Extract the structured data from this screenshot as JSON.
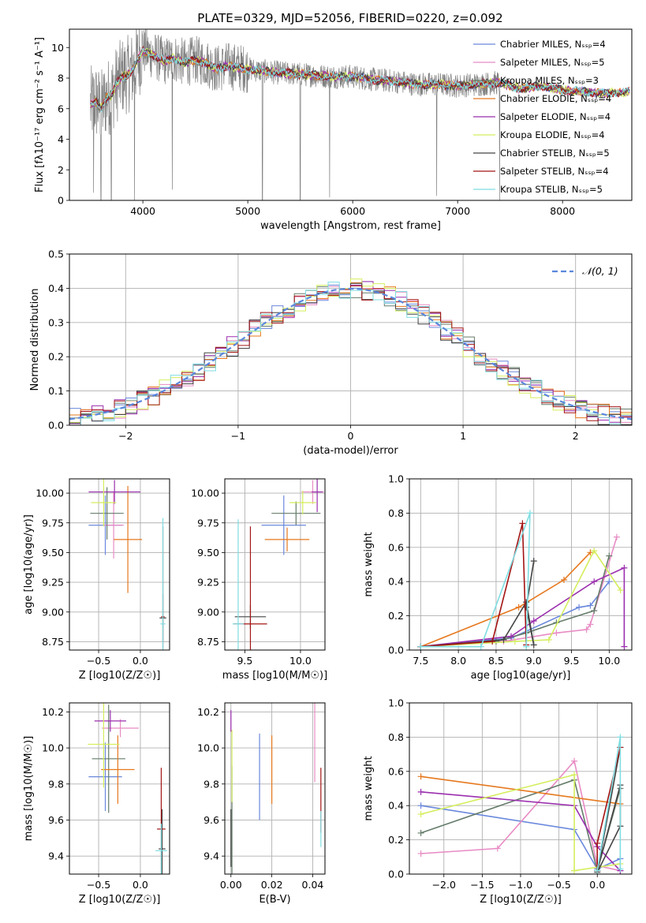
{
  "figure_title": "PLATE=0329, MJD=52056, FIBERID=0220, z=0.092",
  "colors": {
    "c0": "#6a88dc",
    "c1": "#e88bc4",
    "c2": "#657c6a",
    "c3": "#e6781e",
    "c4": "#9b2fae",
    "c5": "#d4ee5e",
    "c6": "#444444",
    "c7": "#a31414",
    "c8": "#7fdde2",
    "grid": "#b0b0b0",
    "gray": "#808080"
  },
  "chart_data": [
    {
      "id": "spectrum",
      "type": "line",
      "title": "PLATE=0329, MJD=52056, FIBERID=0220, z=0.092",
      "xlabel": "wavelength [Angstrom, rest frame]",
      "ylabel": "Flux [fλ10⁻¹⁷ erg cm⁻² s⁻¹ A⁻¹]",
      "xlim": [
        3300,
        8660
      ],
      "ylim": [
        0,
        11.2
      ],
      "xticks": [
        "4000",
        "5000",
        "6000",
        "7000",
        "8000"
      ],
      "yticks": [
        "0",
        "2",
        "4",
        "6",
        "8",
        "10"
      ],
      "grid": false,
      "legend_position": "top-right",
      "legend": [
        "Chabrier MILES, N_SSP=4",
        "Salpeter MILES, N_SSP=5",
        "Kroupa MILES, N_SSP=3",
        "Chabrier ELODIE, N_SSP=4",
        "Salpeter ELODIE, N_SSP=4",
        "Kroupa ELODIE, N_SSP=4",
        "Chabrier STELIB, N_SSP=5",
        "Salpeter STELIB, N_SSP=4",
        "Kroupa STELIB, N_SSP=5"
      ],
      "model_continuum": {
        "x": [
          3500,
          3550,
          3600,
          3650,
          3700,
          3750,
          3800,
          3850,
          3900,
          3950,
          4000,
          4100,
          4200,
          4300,
          4400,
          4500,
          4600,
          4700,
          4800,
          4900,
          5000,
          5200,
          5400,
          5600,
          5800,
          6000,
          6200,
          6400,
          6600,
          6800,
          7000,
          7200,
          7400,
          7600,
          7800,
          8000,
          8200,
          8400,
          8600
        ],
        "y": [
          6.2,
          6.5,
          6.0,
          6.7,
          6.9,
          7.6,
          8.1,
          8.2,
          8.5,
          9.2,
          9.8,
          9.5,
          9.1,
          9.3,
          9.0,
          9.2,
          9.0,
          8.6,
          8.8,
          8.7,
          8.6,
          8.4,
          8.3,
          8.2,
          8.1,
          8.1,
          7.9,
          7.8,
          7.6,
          7.6,
          7.5,
          7.6,
          7.7,
          7.3,
          7.5,
          7.2,
          7.1,
          7.0,
          7.1
        ]
      },
      "absorption_lines": [
        {
          "x": 3530,
          "depth": 0.5
        },
        {
          "x": 3600,
          "depth": 0.0
        },
        {
          "x": 3700,
          "depth": 0.0
        },
        {
          "x": 3920,
          "depth": 0.0
        },
        {
          "x": 4280,
          "depth": 0.7
        },
        {
          "x": 5140,
          "depth": 0.0
        },
        {
          "x": 5500,
          "depth": 0.0
        },
        {
          "x": 5780,
          "depth": 0.2
        },
        {
          "x": 6800,
          "depth": 0.3
        },
        {
          "x": 7400,
          "depth": 0.0
        }
      ]
    },
    {
      "id": "residual-hist",
      "type": "histogram",
      "xlabel": "(data-model)/error",
      "ylabel": "Normed distribution",
      "xlim": [
        -2.5,
        2.5
      ],
      "ylim": [
        0,
        0.5
      ],
      "xticks": [
        "−2",
        "−1",
        "0",
        "1",
        "2"
      ],
      "yticks": [
        "0.0",
        "0.1",
        "0.2",
        "0.3",
        "0.4",
        "0.5"
      ],
      "grid": true,
      "legend": [
        "𝒩(0, 1)"
      ],
      "bin_width": 0.1
    },
    {
      "id": "age-vs-z",
      "type": "errorbar",
      "xlabel": "Z [log10(Z/Z☉)]",
      "ylabel": "age  [log10(age/yr)]",
      "xlim": [
        -0.85,
        0.35
      ],
      "ylim": [
        8.68,
        10.12
      ],
      "xticks": [
        "−0.5",
        "0.0"
      ],
      "yticks": [
        "8.75",
        "9.00",
        "9.25",
        "9.50",
        "9.75",
        "10.00"
      ],
      "grid": true,
      "points": [
        {
          "x": -0.42,
          "y": 9.73,
          "xerr": 0.2,
          "yerr": 0.25,
          "c": "c0"
        },
        {
          "x": -0.32,
          "y": 9.73,
          "xerr": 0.12,
          "yerr": 0.28,
          "c": "c1"
        },
        {
          "x": -0.4,
          "y": 9.83,
          "xerr": 0.2,
          "yerr": 0.22,
          "c": "c2"
        },
        {
          "x": -0.15,
          "y": 9.61,
          "xerr": 0.17,
          "yerr": 0.45,
          "c": "c3"
        },
        {
          "x": -0.31,
          "y": 10.01,
          "xerr": 0.31,
          "yerr": 0.1,
          "c": "c4"
        },
        {
          "x": -0.44,
          "y": 9.92,
          "xerr": 0.15,
          "yerr": 0.2,
          "c": "c5"
        },
        {
          "x": 0.27,
          "y": 8.95,
          "xerr": 0.04,
          "yerr": 0.2,
          "c": "c6"
        },
        {
          "x": 0.27,
          "y": 8.96,
          "xerr": 0.02,
          "yerr": 0.76,
          "c": "c7"
        },
        {
          "x": 0.27,
          "y": 8.9,
          "xerr": 0.03,
          "yerr": 0.89,
          "c": "c8"
        }
      ]
    },
    {
      "id": "age-vs-mass",
      "type": "errorbar",
      "xlabel": "mass [log10(M/M☉)]",
      "ylabel": "",
      "xlim": [
        9.32,
        10.22
      ],
      "ylim": [
        8.68,
        10.12
      ],
      "xticks": [
        "9.5",
        "10.0"
      ],
      "yticks": [
        "8.75",
        "9.00",
        "9.25",
        "9.50",
        "9.75",
        "10.00"
      ],
      "grid": true,
      "points": [
        {
          "x": 9.85,
          "y": 9.73,
          "xerr": 0.2,
          "yerr": 0.25,
          "c": "c0"
        },
        {
          "x": 10.11,
          "y": 10.01,
          "xerr": 0.1,
          "yerr": 0.1,
          "c": "c1"
        },
        {
          "x": 9.96,
          "y": 9.83,
          "xerr": 0.22,
          "yerr": 0.1,
          "c": "c2"
        },
        {
          "x": 9.88,
          "y": 9.61,
          "xerr": 0.2,
          "yerr": 0.1,
          "c": "c3"
        },
        {
          "x": 10.15,
          "y": 10.01,
          "xerr": 0.05,
          "yerr": 0.17,
          "c": "c4"
        },
        {
          "x": 10.02,
          "y": 9.92,
          "xerr": 0.12,
          "yerr": 0.1,
          "c": "c5"
        },
        {
          "x": 9.55,
          "y": 8.96,
          "xerr": 0.14,
          "yerr": 0.1,
          "c": "c6"
        },
        {
          "x": 9.55,
          "y": 8.9,
          "xerr": 0.15,
          "yerr": 0.82,
          "c": "c7"
        },
        {
          "x": 9.44,
          "y": 8.9,
          "xerr": 0.05,
          "yerr": 0.88,
          "c": "c8"
        }
      ]
    },
    {
      "id": "weight-vs-age",
      "type": "line",
      "xlabel": "age  [log10(age/yr)]",
      "ylabel": "mass weight",
      "xlim": [
        7.35,
        10.3
      ],
      "ylim": [
        0,
        1
      ],
      "xticks": [
        "7.5",
        "8.0",
        "8.5",
        "9.0",
        "9.5",
        "10.0"
      ],
      "yticks": [
        "0.0",
        "0.2",
        "0.4",
        "0.6",
        "0.8",
        "1.0"
      ],
      "grid": true,
      "series": [
        {
          "c": "c0",
          "x": [
            7.5,
            8.7,
            9.6,
            9.75,
            10.0
          ],
          "y": [
            0.02,
            0.07,
            0.25,
            0.26,
            0.4
          ]
        },
        {
          "c": "c1",
          "x": [
            7.5,
            8.6,
            9.3,
            9.7,
            9.75,
            10.1
          ],
          "y": [
            0.02,
            0.05,
            0.1,
            0.12,
            0.15,
            0.66
          ]
        },
        {
          "c": "c2",
          "x": [
            7.5,
            8.5,
            8.9,
            9.3,
            9.8,
            10.0
          ],
          "y": [
            0.02,
            0.05,
            0.1,
            0.16,
            0.23,
            0.55
          ]
        },
        {
          "c": "c3",
          "x": [
            7.5,
            8.8,
            9.4,
            9.75
          ],
          "y": [
            0.02,
            0.25,
            0.41,
            0.57
          ]
        },
        {
          "c": "c4",
          "x": [
            7.5,
            8.7,
            9.0,
            9.8,
            10.2,
            10.2
          ],
          "y": [
            0.02,
            0.08,
            0.17,
            0.4,
            0.48,
            0.02
          ]
        },
        {
          "c": "c5",
          "x": [
            7.5,
            8.75,
            9.2,
            9.8,
            10.15
          ],
          "y": [
            0.02,
            0.05,
            0.06,
            0.58,
            0.35
          ]
        },
        {
          "c": "c6",
          "x": [
            7.5,
            8.6,
            8.9,
            9.0,
            8.9,
            9.0
          ],
          "y": [
            0.02,
            0.06,
            0.28,
            0.03,
            0.25,
            0.52
          ]
        },
        {
          "c": "c7",
          "x": [
            7.5,
            8.45,
            8.85,
            8.9
          ],
          "y": [
            0.02,
            0.05,
            0.74,
            0.03
          ]
        },
        {
          "c": "c8",
          "x": [
            7.5,
            8.3,
            8.95,
            8.9
          ],
          "y": [
            0.02,
            0.02,
            0.8,
            0.02
          ]
        }
      ]
    },
    {
      "id": "mass-vs-z",
      "type": "errorbar",
      "xlabel": "Z [log10(Z/Z☉)]",
      "ylabel": "mass [log10(M/M☉)]",
      "xlim": [
        -0.85,
        0.35
      ],
      "ylim": [
        9.3,
        10.25
      ],
      "xticks": [
        "−0.5",
        "0.0"
      ],
      "yticks": [
        "9.4",
        "9.6",
        "9.8",
        "10.0",
        "10.2"
      ],
      "grid": true,
      "points": [
        {
          "x": -0.42,
          "y": 9.84,
          "xerr": 0.2,
          "yerr": 0.19,
          "c": "c0"
        },
        {
          "x": -0.24,
          "y": 10.11,
          "xerr": 0.22,
          "yerr": 0.05,
          "c": "c1"
        },
        {
          "x": -0.38,
          "y": 9.94,
          "xerr": 0.2,
          "yerr": 0.3,
          "c": "c2"
        },
        {
          "x": -0.27,
          "y": 9.88,
          "xerr": 0.2,
          "yerr": 0.19,
          "c": "c3"
        },
        {
          "x": -0.36,
          "y": 10.15,
          "xerr": 0.19,
          "yerr": 0.06,
          "c": "c4"
        },
        {
          "x": -0.44,
          "y": 10.02,
          "xerr": 0.19,
          "yerr": 0.24,
          "c": "c5"
        },
        {
          "x": 0.26,
          "y": 9.44,
          "xerr": 0.04,
          "yerr": 0.22,
          "c": "c6"
        },
        {
          "x": 0.25,
          "y": 9.55,
          "xerr": 0.05,
          "yerr": 0.34,
          "c": "c7"
        },
        {
          "x": 0.25,
          "y": 9.43,
          "xerr": 0.07,
          "yerr": 0.15,
          "c": "c8"
        }
      ]
    },
    {
      "id": "mass-vs-ebv",
      "type": "errorbar",
      "xlabel": "E(B-V)",
      "ylabel": "",
      "xlim": [
        -0.003,
        0.046
      ],
      "ylim": [
        9.3,
        10.25
      ],
      "xticks": [
        "0.00",
        "0.02",
        "0.04"
      ],
      "yticks": [
        "9.4",
        "9.6",
        "9.8",
        "10.0",
        "10.2"
      ],
      "grid": true,
      "points": [
        {
          "x": 0.014,
          "y": 9.84,
          "xerr": 0.0,
          "yerr": 0.24,
          "c": "c0"
        },
        {
          "x": 0.041,
          "y": 10.05,
          "xerr": 0.0,
          "yerr": 0.24,
          "c": "c1"
        },
        {
          "x": 0.0005,
          "y": 9.6,
          "xerr": 0.0,
          "yerr": 0.3,
          "c": "c2"
        },
        {
          "x": 0.02,
          "y": 9.88,
          "xerr": 0.0,
          "yerr": 0.19,
          "c": "c3"
        },
        {
          "x": 0.0,
          "y": 10.15,
          "xerr": 0.0,
          "yerr": 0.06,
          "c": "c4"
        },
        {
          "x": 0.0005,
          "y": 9.9,
          "xerr": 0.0,
          "yerr": 0.2,
          "c": "c5"
        },
        {
          "x": 0.0,
          "y": 9.5,
          "xerr": 0.0,
          "yerr": 0.16,
          "c": "c6"
        },
        {
          "x": 0.044,
          "y": 9.71,
          "xerr": 0.0,
          "yerr": 0.18,
          "c": "c7"
        },
        {
          "x": 0.044,
          "y": 9.55,
          "xerr": 0.0,
          "yerr": 0.1,
          "c": "c8"
        }
      ]
    },
    {
      "id": "weight-vs-z",
      "type": "line",
      "xlabel": "Z [log10(Z/Z☉)]",
      "ylabel": "mass weight",
      "xlim": [
        -2.45,
        0.45
      ],
      "ylim": [
        0,
        1
      ],
      "xticks": [
        "−2.0",
        "−1.5",
        "−1.0",
        "−0.5",
        "0.0"
      ],
      "yticks": [
        "0.0",
        "0.2",
        "0.4",
        "0.6",
        "0.8",
        "1.0"
      ],
      "grid": true,
      "series": [
        {
          "c": "c0",
          "x": [
            -2.3,
            -0.3,
            0.0,
            0.3
          ],
          "y": [
            0.4,
            0.26,
            0.03,
            0.09
          ]
        },
        {
          "c": "c1",
          "x": [
            -2.3,
            -1.3,
            -0.3,
            0.0,
            0.3
          ],
          "y": [
            0.12,
            0.15,
            0.66,
            0.05,
            0.02
          ]
        },
        {
          "c": "c2",
          "x": [
            -2.3,
            -0.3,
            0.0,
            0.3
          ],
          "y": [
            0.24,
            0.55,
            0.02,
            0.5
          ]
        },
        {
          "c": "c3",
          "x": [
            -2.3,
            0.3
          ],
          "y": [
            0.57,
            0.41
          ]
        },
        {
          "c": "c4",
          "x": [
            -2.3,
            -0.3,
            0.0,
            0.3
          ],
          "y": [
            0.48,
            0.4,
            0.16,
            0.02
          ]
        },
        {
          "c": "c5",
          "x": [
            -2.3,
            -0.3,
            -0.3,
            0.3
          ],
          "y": [
            0.35,
            0.58,
            0.02,
            0.06
          ]
        },
        {
          "c": "c6",
          "x": [
            0.0,
            0.3,
            0.3,
            0.0,
            0.3
          ],
          "y": [
            0.02,
            0.52,
            0.28,
            0.01,
            0.74
          ]
        },
        {
          "c": "c7",
          "x": [
            0.0,
            0.0,
            0.3
          ],
          "y": [
            0.02,
            0.18,
            0.74
          ]
        },
        {
          "c": "c8",
          "x": [
            0.0,
            0.3,
            0.3
          ],
          "y": [
            0.02,
            0.8,
            0.03
          ]
        }
      ]
    }
  ]
}
